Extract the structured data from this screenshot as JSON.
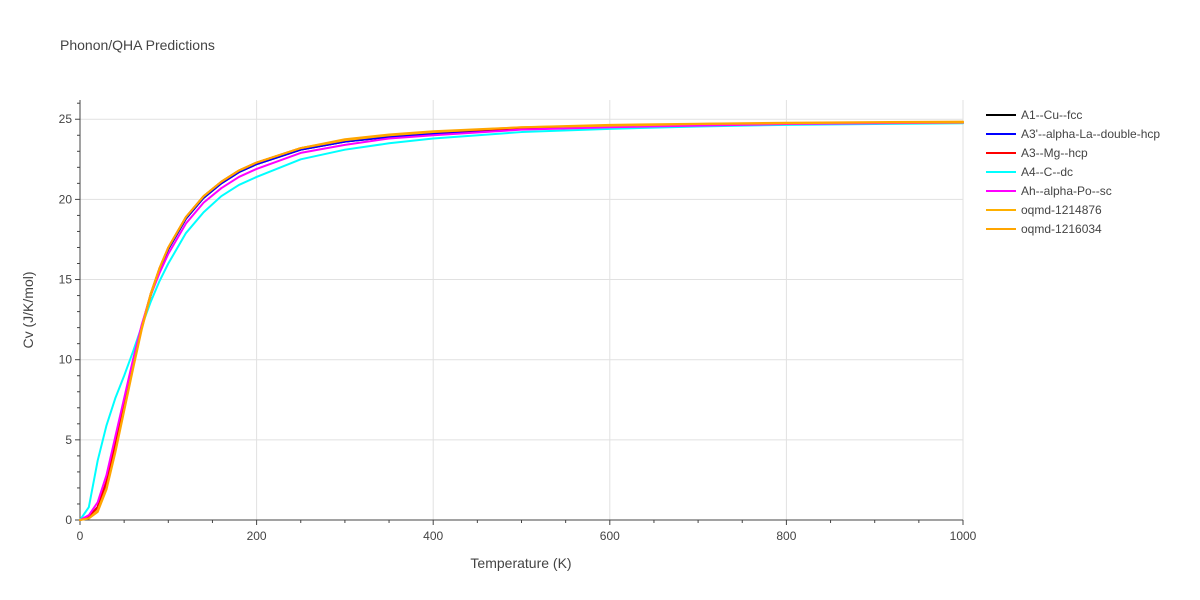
{
  "chart_data": {
    "type": "line",
    "title": "Phonon/QHA Predictions",
    "xlabel": "Temperature (K)",
    "ylabel": "Cv (J/K/mol)",
    "xlim": [
      0,
      1000
    ],
    "ylim": [
      0,
      26.2
    ],
    "x_ticks": [
      0,
      200,
      400,
      600,
      800,
      1000
    ],
    "y_ticks": [
      0,
      5,
      10,
      15,
      20,
      25
    ],
    "grid": true,
    "legend_position": "right",
    "x": [
      0,
      10,
      20,
      30,
      40,
      50,
      60,
      70,
      80,
      90,
      100,
      120,
      140,
      160,
      180,
      200,
      250,
      300,
      350,
      400,
      500,
      600,
      700,
      800,
      900,
      1000
    ],
    "series": [
      {
        "name": "A1--Cu--fcc",
        "color": "#000000",
        "values": [
          0,
          0.2,
          0.8,
          2.3,
          4.6,
          7.1,
          9.6,
          12.0,
          14.0,
          15.6,
          16.9,
          18.8,
          20.1,
          21.0,
          21.7,
          22.2,
          23.1,
          23.6,
          23.9,
          24.1,
          24.4,
          24.55,
          24.65,
          24.7,
          24.75,
          24.78
        ]
      },
      {
        "name": "A3'--alpha-La--double-hcp",
        "color": "#0000ff",
        "values": [
          0,
          0.2,
          0.8,
          2.3,
          4.6,
          7.1,
          9.6,
          12.0,
          14.0,
          15.6,
          16.9,
          18.8,
          20.1,
          21.0,
          21.7,
          22.2,
          23.1,
          23.6,
          23.9,
          24.1,
          24.4,
          24.55,
          24.65,
          24.7,
          24.75,
          24.78
        ]
      },
      {
        "name": "A3--Mg--hcp",
        "color": "#ff0000",
        "values": [
          0,
          0.2,
          0.8,
          2.4,
          4.8,
          7.3,
          9.8,
          12.1,
          14.1,
          15.7,
          17.0,
          18.9,
          20.2,
          21.1,
          21.8,
          22.3,
          23.2,
          23.7,
          24.0,
          24.2,
          24.45,
          24.6,
          24.7,
          24.75,
          24.8,
          24.8
        ]
      },
      {
        "name": "A4--C--dc",
        "color": "#00ffff",
        "values": [
          0,
          0.8,
          3.7,
          5.9,
          7.6,
          9.0,
          10.5,
          12.1,
          13.6,
          14.9,
          16.0,
          17.9,
          19.2,
          20.2,
          20.9,
          21.4,
          22.5,
          23.1,
          23.5,
          23.8,
          24.2,
          24.4,
          24.55,
          24.65,
          24.7,
          24.75
        ]
      },
      {
        "name": "Ah--alpha-Po--sc",
        "color": "#ff00ff",
        "values": [
          0,
          0.3,
          1.1,
          2.8,
          5.2,
          7.6,
          10.0,
          12.2,
          14.0,
          15.4,
          16.6,
          18.5,
          19.8,
          20.7,
          21.4,
          21.9,
          22.9,
          23.4,
          23.8,
          24.0,
          24.35,
          24.5,
          24.6,
          24.7,
          24.75,
          24.78
        ]
      },
      {
        "name": "oqmd-1214876",
        "color": "#ffb000",
        "values": [
          0,
          0.1,
          0.6,
          2.0,
          4.3,
          6.9,
          9.5,
          12.0,
          14.1,
          15.7,
          17.0,
          18.9,
          20.2,
          21.1,
          21.8,
          22.3,
          23.2,
          23.7,
          24.0,
          24.2,
          24.5,
          24.6,
          24.7,
          24.75,
          24.8,
          24.8
        ]
      },
      {
        "name": "oqmd-1216034",
        "color": "#ffa500",
        "values": [
          0,
          0.1,
          0.5,
          1.9,
          4.2,
          6.8,
          9.4,
          11.9,
          14.0,
          15.7,
          17.0,
          18.9,
          20.2,
          21.1,
          21.8,
          22.3,
          23.2,
          23.75,
          24.05,
          24.25,
          24.5,
          24.65,
          24.72,
          24.78,
          24.82,
          24.85
        ]
      }
    ]
  }
}
